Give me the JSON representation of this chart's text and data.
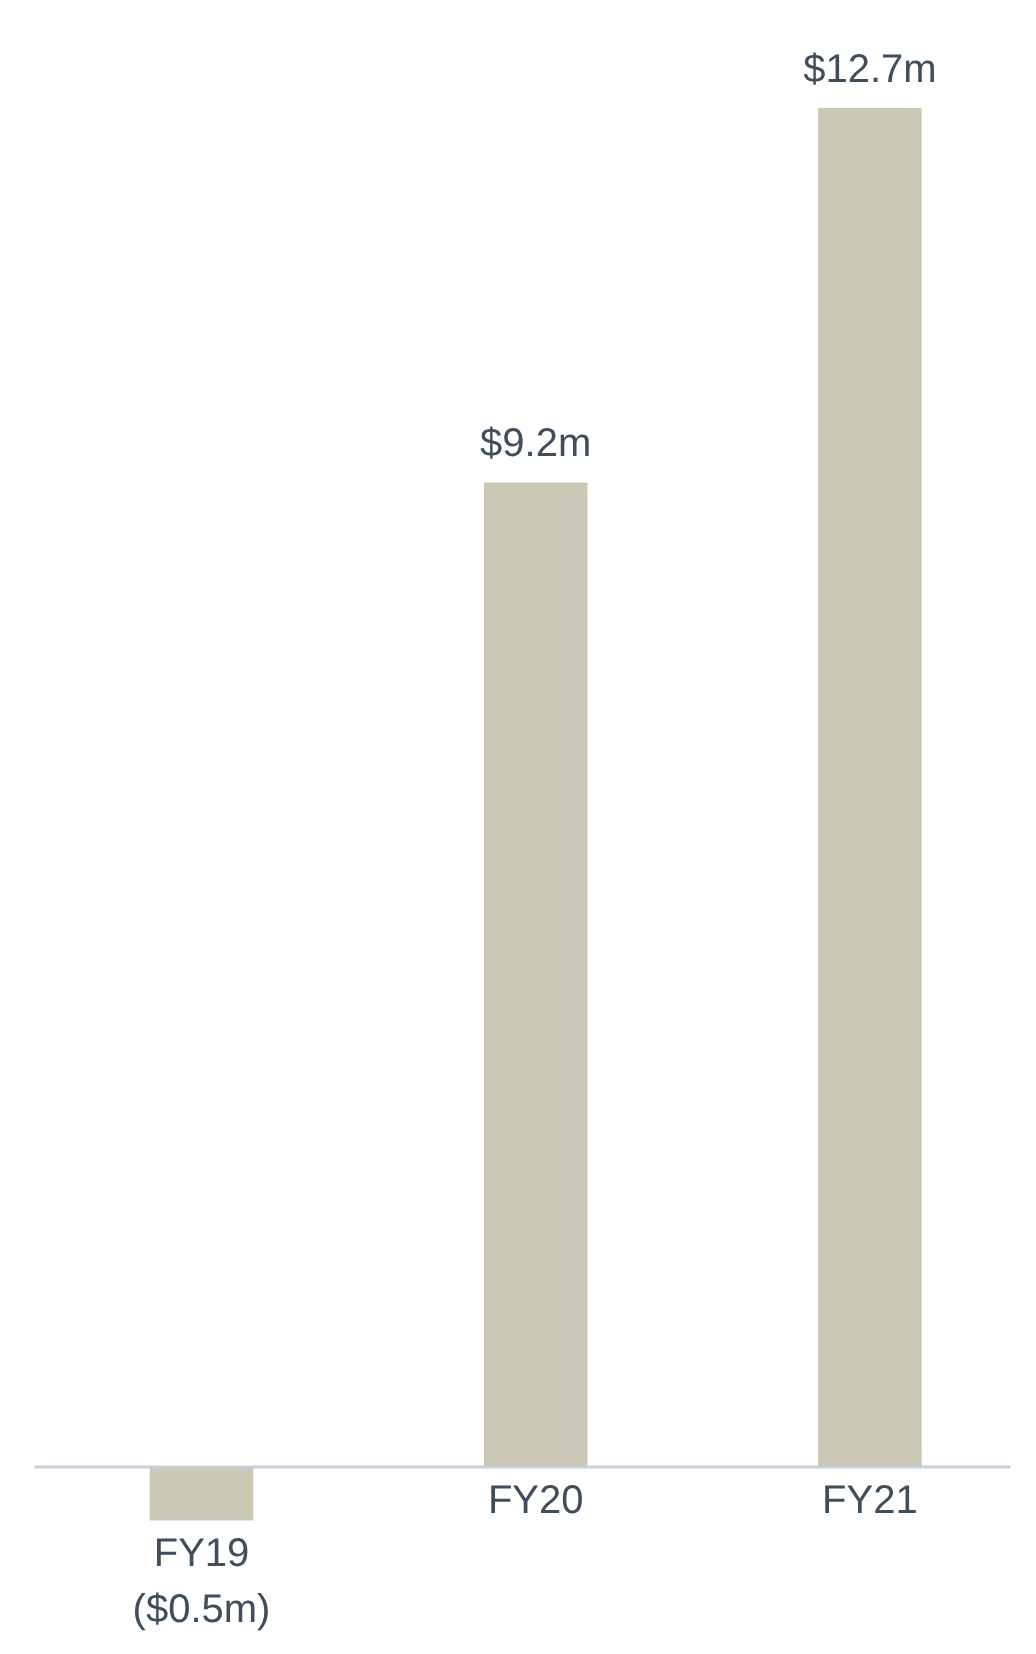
{
  "chart_data": {
    "type": "bar",
    "categories": [
      "FY19",
      "FY20",
      "FY21"
    ],
    "values": [
      -0.5,
      9.2,
      12.7
    ],
    "value_labels": [
      "($0.5m)",
      "$9.2m",
      "$12.7m"
    ],
    "color": "#cbc9b5"
  }
}
